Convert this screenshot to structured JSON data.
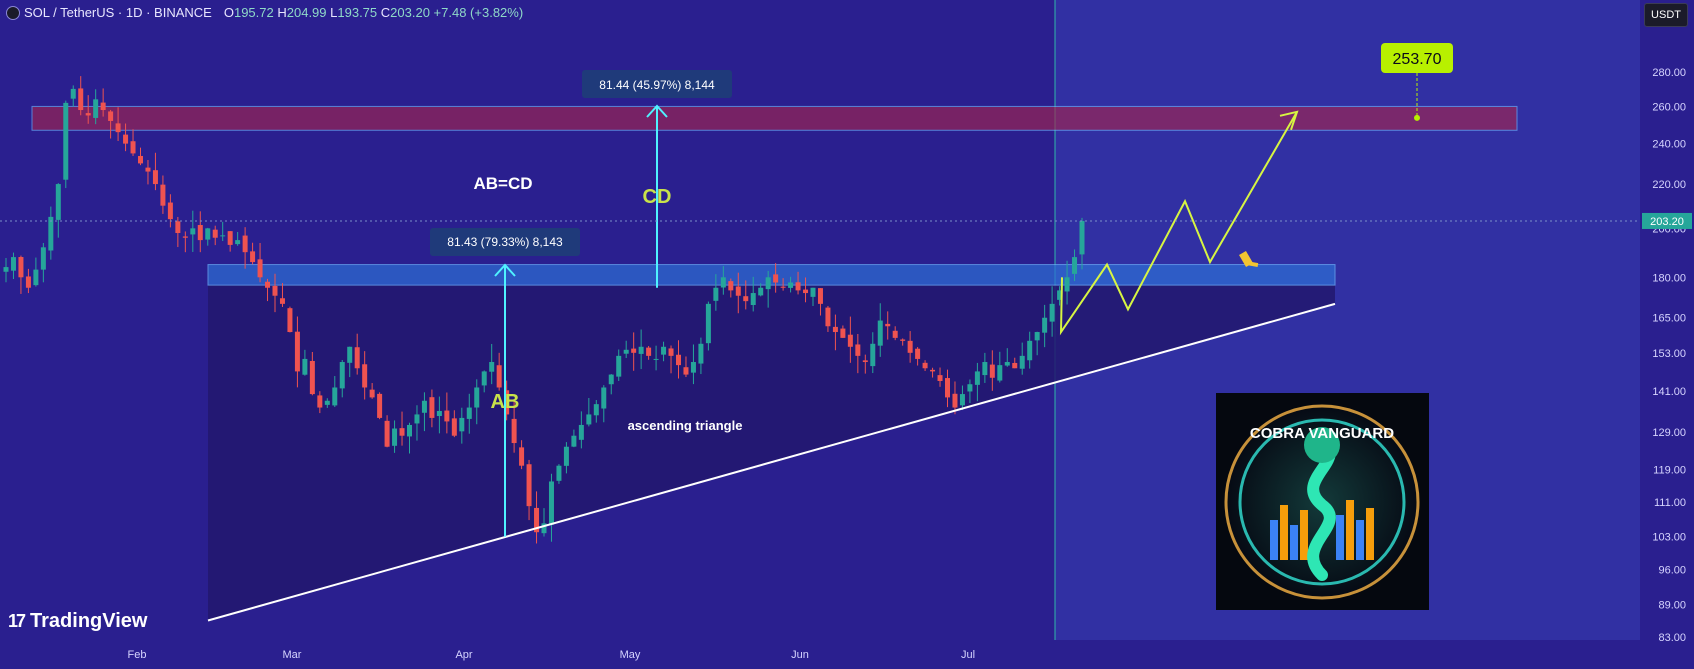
{
  "header": {
    "symbol": "SOL / TetherUS · 1D · BINANCE",
    "open_label": "O",
    "open": "195.72",
    "high_label": "H",
    "high": "204.99",
    "low_label": "L",
    "low": "193.75",
    "close_label": "C",
    "close": "203.20",
    "change": "+7.48 (+3.82%)"
  },
  "currency_badge": "USDT",
  "branding": {
    "tradingview": "TradingView",
    "watermark": "COBRA VANGUARD"
  },
  "colors": {
    "background": "#2a1f8f",
    "up_candle": "#26a69a",
    "down_candle": "#ef5350",
    "resistance_zone": "#a1254f",
    "support_zone": "#2d6fd6",
    "projection": "#d7f542",
    "target_label": "#b8f000"
  },
  "chart_data": {
    "type": "candlestick",
    "xlabel": "",
    "ylabel": "",
    "x_ticks": [
      "Feb",
      "Mar",
      "Apr",
      "May",
      "Jun",
      "Jul"
    ],
    "y_ticks": [
      "280.00",
      "260.00",
      "240.00",
      "220.00",
      "200.00",
      "180.00",
      "165.00",
      "153.00",
      "141.00",
      "129.00",
      "119.00",
      "111.00",
      "103.00",
      "96.00",
      "89.00",
      "83.00"
    ],
    "ylim": [
      83,
      300
    ],
    "log_scale": true,
    "last_price": "203.20",
    "closes": [
      184,
      188,
      180,
      176,
      183,
      192,
      205,
      220,
      262,
      270,
      258,
      255,
      264,
      258,
      252,
      246,
      240,
      235,
      230,
      226,
      220,
      210,
      204,
      198,
      196,
      200,
      195,
      200,
      196,
      197,
      193,
      195,
      190,
      186,
      180,
      176,
      173,
      170,
      160,
      147,
      151,
      140,
      136,
      138,
      142,
      150,
      155,
      148,
      142,
      139,
      133,
      125,
      130,
      128,
      131,
      134,
      138,
      133,
      135,
      132,
      128,
      133,
      136,
      142,
      147,
      150,
      142,
      134,
      126,
      120,
      110,
      104,
      106,
      116,
      120,
      125,
      128,
      131,
      134,
      137,
      142,
      146,
      152,
      154,
      153,
      155,
      152,
      151,
      155,
      152,
      149,
      146,
      150,
      156,
      170,
      176,
      180,
      175,
      173,
      171,
      174,
      176,
      180,
      178,
      176,
      178,
      175,
      174,
      176,
      170,
      162,
      160,
      158,
      155,
      152,
      150,
      156,
      164,
      162,
      158,
      157,
      153,
      151,
      148,
      147,
      144,
      139,
      136,
      140,
      143,
      147,
      150,
      145,
      149,
      150,
      148,
      152,
      157,
      160,
      165,
      170,
      175,
      180,
      188,
      203.2
    ],
    "volume_hint": "",
    "annotations": {
      "ab_measure": "81.43 (79.33%) 8,143",
      "cd_measure": "81.44 (45.97%) 8,144",
      "ab_label": "AB",
      "cd_label": "CD",
      "equality": "AB=CD",
      "pattern": "ascending triangle",
      "target": "253.70"
    },
    "resistance_zone": [
      247,
      260
    ],
    "support_zone": [
      177,
      185
    ],
    "projection_path": [
      160,
      185,
      168,
      212,
      186,
      257
    ],
    "trendline": [
      86,
      170
    ]
  }
}
